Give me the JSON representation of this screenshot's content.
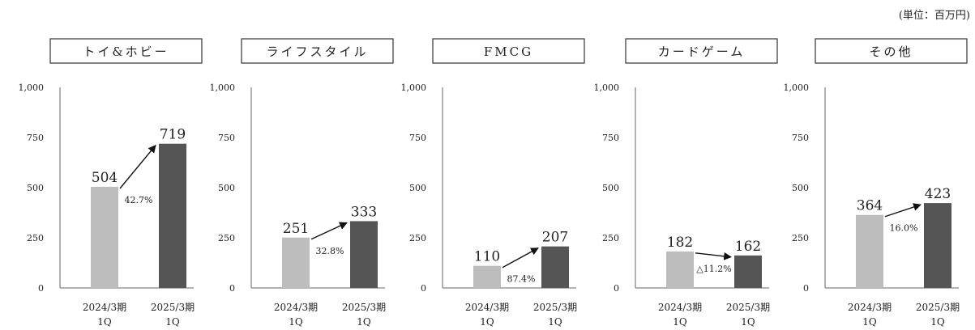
{
  "unit_label": "(単位：百万円)",
  "colors": {
    "prev_bar": "#bdbdbd",
    "curr_bar": "#555555",
    "axis": "#666666",
    "text": "#222222"
  },
  "chart_data": [
    {
      "type": "bar",
      "title": "トイ&ホビー",
      "categories": [
        "2024/3期\n1Q",
        "2025/3期\n1Q"
      ],
      "values": [
        504,
        719
      ],
      "growth": "42.7%",
      "ylim": [
        0,
        1000
      ],
      "yticks": [
        "1,000",
        "750",
        "500",
        "250",
        "0"
      ]
    },
    {
      "type": "bar",
      "title": "ライフスタイル",
      "categories": [
        "2024/3期\n1Q",
        "2025/3期\n1Q"
      ],
      "values": [
        251,
        333
      ],
      "growth": "32.8%",
      "ylim": [
        0,
        1000
      ],
      "yticks": [
        "1,000",
        "750",
        "500",
        "250",
        "0"
      ]
    },
    {
      "type": "bar",
      "title": "FMCG",
      "categories": [
        "2024/3期\n1Q",
        "2025/3期\n1Q"
      ],
      "values": [
        110,
        207
      ],
      "growth": "87.4%",
      "ylim": [
        0,
        1000
      ],
      "yticks": [
        "1,000",
        "750",
        "500",
        "250",
        "0"
      ]
    },
    {
      "type": "bar",
      "title": "カードゲーム",
      "categories": [
        "2024/3期\n1Q",
        "2025/3期\n1Q"
      ],
      "values": [
        182,
        162
      ],
      "growth": "△11.2%",
      "ylim": [
        0,
        1000
      ],
      "yticks": [
        "1,000",
        "750",
        "500",
        "250",
        "0"
      ]
    },
    {
      "type": "bar",
      "title": "その他",
      "categories": [
        "2024/3期\n1Q",
        "2025/3期\n1Q"
      ],
      "values": [
        364,
        423
      ],
      "growth": "16.0%",
      "ylim": [
        0,
        1000
      ],
      "yticks": [
        "1,000",
        "750",
        "500",
        "250",
        "0"
      ]
    }
  ]
}
